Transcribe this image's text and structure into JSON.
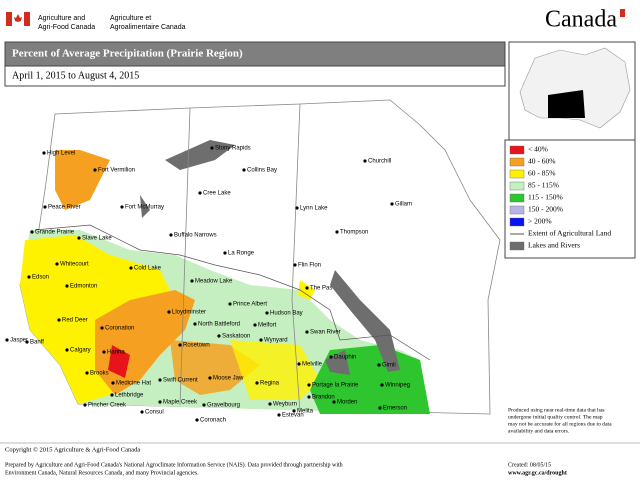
{
  "header": {
    "dept_en": [
      "Agriculture and",
      "Agri-Food Canada"
    ],
    "dept_fr": [
      "Agriculture et",
      "Agroalimentaire Canada"
    ],
    "wordmark": "Canada"
  },
  "title": "Percent of Average Precipitation (Prairie Region)",
  "date_range": "April 1, 2015 to August 4, 2015",
  "legend": [
    {
      "label": "< 40%",
      "color": "#e8141c"
    },
    {
      "label": "40 - 60%",
      "color": "#f5a020"
    },
    {
      "label": "60 - 85%",
      "color": "#fff200"
    },
    {
      "label": "85 - 115%",
      "color": "#c5efc0"
    },
    {
      "label": "115 - 150%",
      "color": "#2fc52f"
    },
    {
      "label": "150 - 200%",
      "color": "#b7b4e8"
    },
    {
      "label": "> 200%",
      "color": "#0a14f0"
    },
    {
      "label": "Extent of Agricultural Land",
      "color": "#555555"
    },
    {
      "label": "Lakes and Rivers",
      "color": "#6e6e6e"
    }
  ],
  "cities": [
    "High Level",
    "Fort Vermilion",
    "Peace River",
    "Fort McMurray",
    "Grande Prairie",
    "Slave Lake",
    "Whitecourt",
    "Edson",
    "Edmonton",
    "Cold Lake",
    "Jasper",
    "Red Deer",
    "Coronation",
    "Banff",
    "Calgary",
    "Hanna",
    "Brooks",
    "Medicine Hat",
    "Lethbridge",
    "Pincher Creek",
    "Stony Rapids",
    "Collins Bay",
    "Cree Lake",
    "Buffalo Narrows",
    "La Ronge",
    "Meadow Lake",
    "Lloydminster",
    "North Battleford",
    "Prince Albert",
    "Hudson Bay",
    "Melfort",
    "Saskatoon",
    "Rosetown",
    "Wynyard",
    "Swift Current",
    "Moose Jaw",
    "Regina",
    "Melville",
    "Maple Creek",
    "Consul",
    "Gravelbourg",
    "Coronach",
    "Weyburn",
    "Estevan",
    "Lynn Lake",
    "Churchill",
    "Gillam",
    "Thompson",
    "Flin Flon",
    "The Pas",
    "Swan River",
    "Dauphin",
    "Portage la Prairie",
    "Brandon",
    "Gimli",
    "Winnipeg",
    "Morden",
    "Melita",
    "Emerson"
  ],
  "note": [
    "Produced using near real-time data that has",
    "undergone initial quality control.  The map",
    "may not be accurate for all regions due to data",
    "availability and data errors."
  ],
  "footer": {
    "copyright": "Copyright © 2015 Agriculture & Agri-Food Canada",
    "prepared": [
      "Prepared by Agriculture and Agri-Food Canada's National Agroclimate Information Service (NAIS).  Data provided through partnership with",
      "Environment Canada, Natural Resources Canada, and many Provincial agencies."
    ],
    "created": "Created: 08/05/15",
    "url": "www.agr.gc.ca/drought"
  }
}
